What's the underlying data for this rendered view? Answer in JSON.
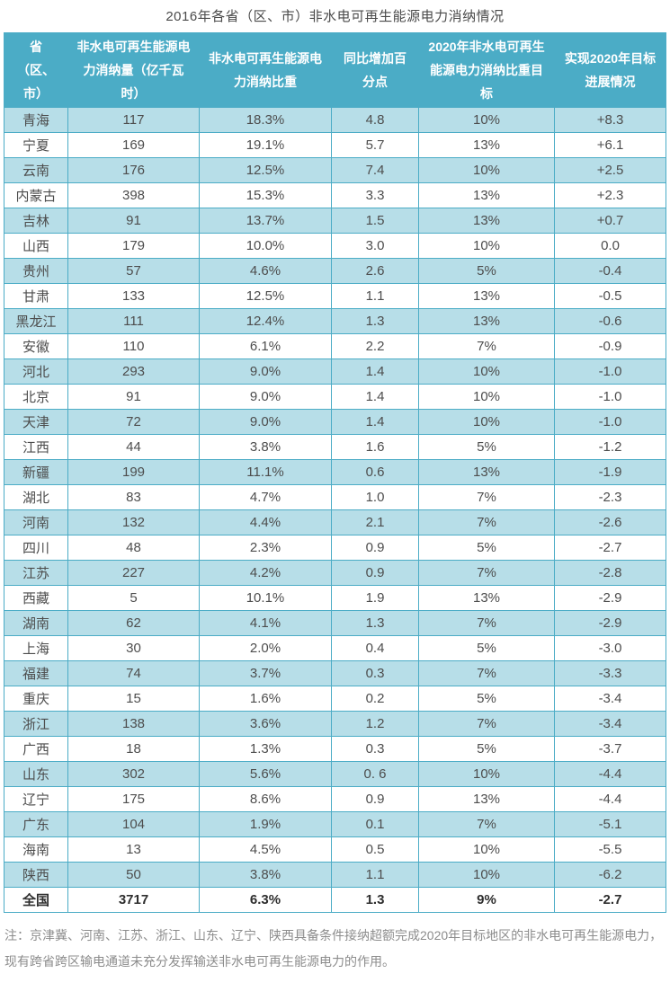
{
  "title": "2016年各省（区、市）非水电可再生能源电力消纳情况",
  "note": "注：京津冀、河南、江苏、浙江、山东、辽宁、陕西具备条件接纳超额完成2020年目标地区的非水电可再生能源电力，现有跨省跨区输电通道未充分发挥输送非水电可再生能源电力的作用。",
  "colors": {
    "header_bg": "#4BACC6",
    "band_row_bg": "#B7DEE8",
    "plain_row_bg": "#ffffff",
    "border": "#4BACC6",
    "header_text": "#ffffff",
    "cell_text": "#4d4d4d",
    "note_text": "#8c8c8c",
    "title_text": "#4a4a4a"
  },
  "chart_data": {
    "type": "table",
    "title": "2016年各省（区、市）非水电可再生能源电力消纳情况",
    "headers": [
      "省（区、市）",
      "非水电可再生能源电力消纳量（亿千瓦时）",
      "非水电可再生能源电力消纳比重",
      "同比增加百分点",
      "2020年非水电可再生能源电力消纳比重目标",
      "实现2020年目标进展情况"
    ],
    "total_row_index": 31,
    "rows": [
      [
        "青海",
        "117",
        "18.3%",
        "4.8",
        "10%",
        "+8.3"
      ],
      [
        "宁夏",
        "169",
        "19.1%",
        "5.7",
        "13%",
        "+6.1"
      ],
      [
        "云南",
        "176",
        "12.5%",
        "7.4",
        "10%",
        "+2.5"
      ],
      [
        "内蒙古",
        "398",
        "15.3%",
        "3.3",
        "13%",
        "+2.3"
      ],
      [
        "吉林",
        "91",
        "13.7%",
        "1.5",
        "13%",
        "+0.7"
      ],
      [
        "山西",
        "179",
        "10.0%",
        "3.0",
        "10%",
        "0.0"
      ],
      [
        "贵州",
        "57",
        "4.6%",
        "2.6",
        "5%",
        "-0.4"
      ],
      [
        "甘肃",
        "133",
        "12.5%",
        "1.1",
        "13%",
        "-0.5"
      ],
      [
        "黑龙江",
        "111",
        "12.4%",
        "1.3",
        "13%",
        "-0.6"
      ],
      [
        "安徽",
        "110",
        "6.1%",
        "2.2",
        "7%",
        "-0.9"
      ],
      [
        "河北",
        "293",
        "9.0%",
        "1.4",
        "10%",
        "-1.0"
      ],
      [
        "北京",
        "91",
        "9.0%",
        "1.4",
        "10%",
        "-1.0"
      ],
      [
        "天津",
        "72",
        "9.0%",
        "1.4",
        "10%",
        "-1.0"
      ],
      [
        "江西",
        "44",
        "3.8%",
        "1.6",
        "5%",
        "-1.2"
      ],
      [
        "新疆",
        "199",
        "11.1%",
        "0.6",
        "13%",
        "-1.9"
      ],
      [
        "湖北",
        "83",
        "4.7%",
        "1.0",
        "7%",
        "-2.3"
      ],
      [
        "河南",
        "132",
        "4.4%",
        "2.1",
        "7%",
        "-2.6"
      ],
      [
        "四川",
        "48",
        "2.3%",
        "0.9",
        "5%",
        "-2.7"
      ],
      [
        "江苏",
        "227",
        "4.2%",
        "0.9",
        "7%",
        "-2.8"
      ],
      [
        "西藏",
        "5",
        "10.1%",
        "1.9",
        "13%",
        "-2.9"
      ],
      [
        "湖南",
        "62",
        "4.1%",
        "1.3",
        "7%",
        "-2.9"
      ],
      [
        "上海",
        "30",
        "2.0%",
        "0.4",
        "5%",
        "-3.0"
      ],
      [
        "福建",
        "74",
        "3.7%",
        "0.3",
        "7%",
        "-3.3"
      ],
      [
        "重庆",
        "15",
        "1.6%",
        "0.2",
        "5%",
        "-3.4"
      ],
      [
        "浙江",
        "138",
        "3.6%",
        "1.2",
        "7%",
        "-3.4"
      ],
      [
        "广西",
        "18",
        "1.3%",
        "0.3",
        "5%",
        "-3.7"
      ],
      [
        "山东",
        "302",
        "5.6%",
        "0. 6",
        "10%",
        "-4.4"
      ],
      [
        "辽宁",
        "175",
        "8.6%",
        "0.9",
        "13%",
        "-4.4"
      ],
      [
        "广东",
        "104",
        "1.9%",
        "0.1",
        "7%",
        "-5.1"
      ],
      [
        "海南",
        "13",
        "4.5%",
        "0.5",
        "10%",
        "-5.5"
      ],
      [
        "陕西",
        "50",
        "3.8%",
        "1.1",
        "10%",
        "-6.2"
      ],
      [
        "全国",
        "3717",
        "6.3%",
        "1.3",
        "9%",
        "-2.7"
      ]
    ]
  }
}
